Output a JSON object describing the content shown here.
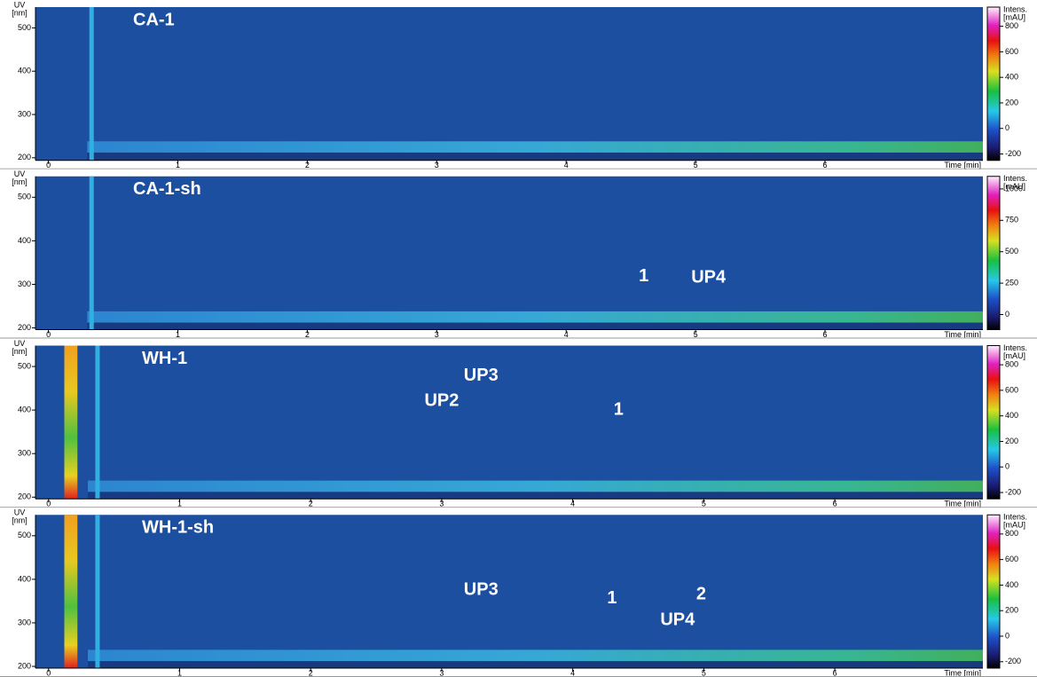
{
  "chart_data": [
    {
      "type": "heatmap",
      "title": "CA-1",
      "xlabel": "Time [min]",
      "ylabel": [
        "UV",
        "[nm]"
      ],
      "colorbar_label": [
        "Intens.",
        "[mAU]"
      ],
      "xlim": [
        -0.1,
        7.22
      ],
      "xticks": [
        0,
        1,
        2,
        3,
        4,
        5,
        6
      ],
      "ylim": [
        194,
        548
      ],
      "yticks": [
        200,
        300,
        400,
        500
      ],
      "clim": [
        -250,
        950
      ],
      "cticks": [
        -200,
        0,
        200,
        400,
        600,
        800
      ],
      "annotations": []
    },
    {
      "type": "heatmap",
      "title": "CA-1-sh",
      "xlabel": "Time [min]",
      "ylabel": [
        "UV",
        "[nm]"
      ],
      "colorbar_label": [
        "Intens.",
        "[mAU]"
      ],
      "xlim": [
        -0.1,
        7.22
      ],
      "xticks": [
        0,
        1,
        2,
        3,
        4,
        5,
        6
      ],
      "ylim": [
        196,
        548
      ],
      "yticks": [
        200,
        300,
        400,
        500
      ],
      "clim": [
        -120,
        1100
      ],
      "cticks": [
        0,
        250,
        500,
        750,
        1000
      ],
      "annotations": [
        {
          "text": "1",
          "x": 4.6,
          "y": 318
        },
        {
          "text": "UP4",
          "x": 5.1,
          "y": 315
        }
      ]
    },
    {
      "type": "heatmap",
      "title": "WH-1",
      "xlabel": "Time [min]",
      "ylabel": [
        "UV",
        "[nm]"
      ],
      "colorbar_label": [
        "Intens.",
        "[mAU]"
      ],
      "xlim": [
        -0.1,
        7.13
      ],
      "xticks": [
        0,
        1,
        2,
        3,
        4,
        5,
        6
      ],
      "ylim": [
        196,
        548
      ],
      "yticks": [
        200,
        300,
        400,
        500
      ],
      "clim": [
        -250,
        950
      ],
      "cticks": [
        -200,
        0,
        200,
        400,
        600,
        800
      ],
      "annotations": [
        {
          "text": "UP2",
          "x": 3.0,
          "y": 420
        },
        {
          "text": "UP3",
          "x": 3.3,
          "y": 478
        },
        {
          "text": "1",
          "x": 4.35,
          "y": 400
        }
      ]
    },
    {
      "type": "heatmap",
      "title": "WH-1-sh",
      "xlabel": "Time [min]",
      "ylabel": [
        "UV",
        "[nm]"
      ],
      "colorbar_label": [
        "Intens.",
        "[mAU]"
      ],
      "xlim": [
        -0.1,
        7.13
      ],
      "xticks": [
        0,
        1,
        2,
        3,
        4,
        5,
        6
      ],
      "ylim": [
        196,
        548
      ],
      "yticks": [
        200,
        300,
        400,
        500
      ],
      "clim": [
        -250,
        950
      ],
      "cticks": [
        -200,
        0,
        200,
        400,
        600,
        800
      ],
      "annotations": [
        {
          "text": "UP3",
          "x": 3.3,
          "y": 375
        },
        {
          "text": "1",
          "x": 4.3,
          "y": 355
        },
        {
          "text": "UP4",
          "x": 4.8,
          "y": 306
        },
        {
          "text": "2",
          "x": 4.98,
          "y": 365
        }
      ]
    }
  ]
}
